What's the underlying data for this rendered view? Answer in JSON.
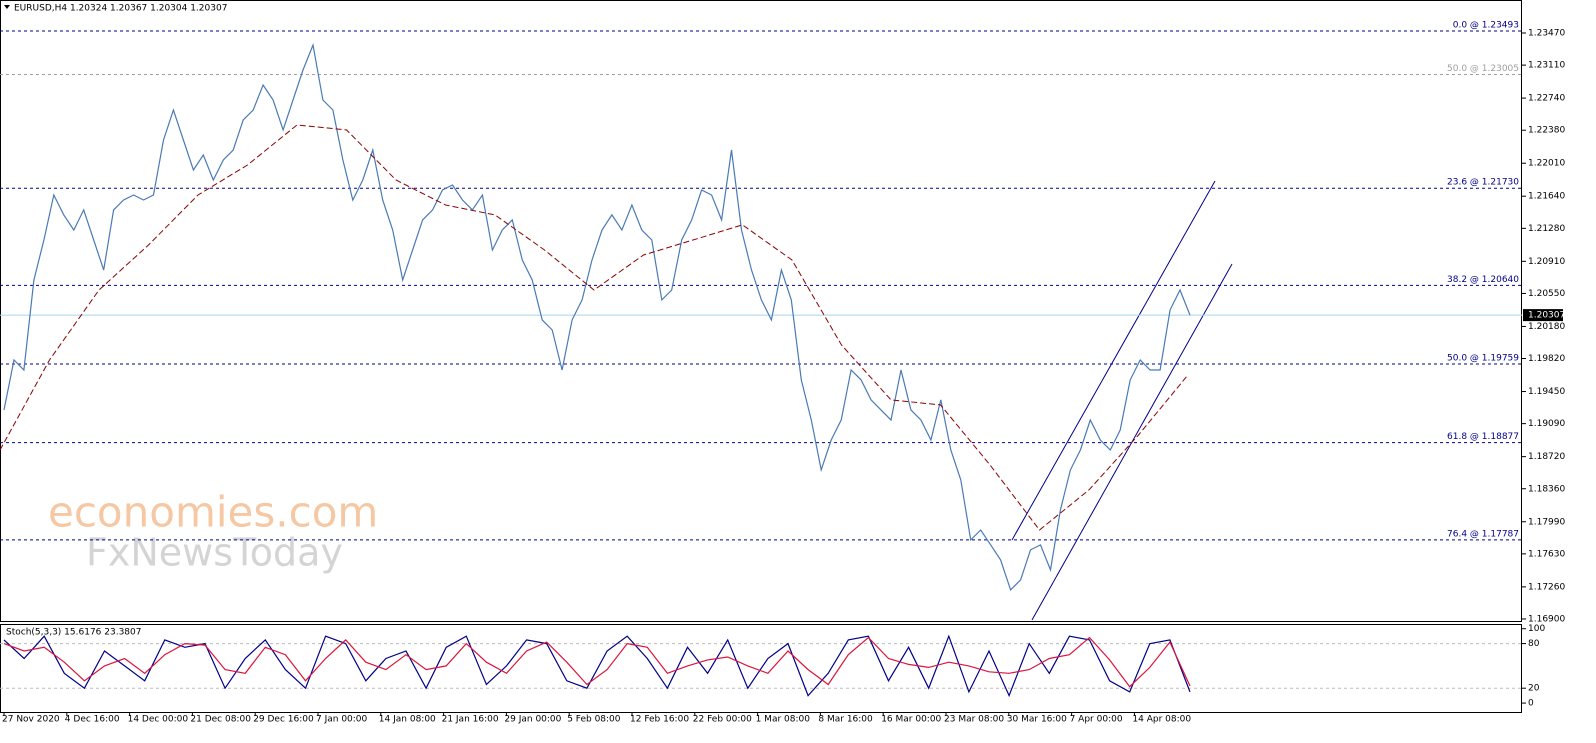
{
  "chart_data": [
    {
      "type": "line",
      "title": "EURUSD,H4  1.20324 1.20367 1.20304 1.20307",
      "watermark": [
        "economies.com",
        "FxNewsToday"
      ],
      "ylim": [
        1.16866,
        1.2384
      ],
      "yticks": [
        {
          "value": 1.2347,
          "label": "1.23470"
        },
        {
          "value": 1.2311,
          "label": "1.23110"
        },
        {
          "value": 1.2274,
          "label": "1.22740"
        },
        {
          "value": 1.2238,
          "label": "1.22380"
        },
        {
          "value": 1.2201,
          "label": "1.22010"
        },
        {
          "value": 1.2164,
          "label": "1.21640"
        },
        {
          "value": 1.2128,
          "label": "1.21280"
        },
        {
          "value": 1.2091,
          "label": "1.20910"
        },
        {
          "value": 1.2055,
          "label": "1.20550"
        },
        {
          "value": 1.2018,
          "label": "1.20180"
        },
        {
          "value": 1.1982,
          "label": "1.19820"
        },
        {
          "value": 1.1945,
          "label": "1.19450"
        },
        {
          "value": 1.1909,
          "label": "1.19090"
        },
        {
          "value": 1.1872,
          "label": "1.18720"
        },
        {
          "value": 1.1836,
          "label": "1.18360"
        },
        {
          "value": 1.1799,
          "label": "1.17990"
        },
        {
          "value": 1.1763,
          "label": "1.17630"
        },
        {
          "value": 1.1726,
          "label": "1.17260"
        },
        {
          "value": 1.169,
          "label": "1.16900"
        }
      ],
      "current_price": 1.20307,
      "fib_levels": [
        {
          "label": "0.0 @ 1.23493",
          "value": 1.23493,
          "color": "#00008b"
        },
        {
          "label": "50.0 @ 1.23005",
          "value": 1.23005,
          "color": "#a0a0a0"
        },
        {
          "label": "23.6 @ 1.21730",
          "value": 1.2173,
          "color": "#00008b"
        },
        {
          "label": "38.2 @ 1.20640",
          "value": 1.2064,
          "color": "#00008b"
        },
        {
          "label": "50.0 @ 1.19759",
          "value": 1.19759,
          "color": "#00008b"
        },
        {
          "label": "61.8 @ 1.18877",
          "value": 1.18877,
          "color": "#00008b"
        },
        {
          "label": "76.4 @ 1.17787",
          "value": 1.17787,
          "color": "#00008b"
        }
      ],
      "series": [
        {
          "color": "#4a7ab5",
          "values": [
            1.19244,
            1.19804,
            1.19692,
            1.20701,
            1.21149,
            1.21654,
            1.2143,
            1.21261,
            1.21486,
            1.21149,
            1.20813,
            1.21486,
            1.21598,
            1.21654,
            1.21598,
            1.21654,
            1.2227,
            1.22607,
            1.2227,
            1.21934,
            1.22102,
            1.21822,
            1.22046,
            1.22158,
            1.22495,
            1.22607,
            1.22887,
            1.22719,
            1.22383,
            1.22719,
            1.23055,
            1.23335,
            1.22719,
            1.22607,
            1.22046,
            1.21598,
            1.21822,
            1.22158,
            1.21598,
            1.21261,
            1.20701,
            1.21037,
            1.21374,
            1.21486,
            1.2171,
            1.21766,
            1.21598,
            1.21486,
            1.21654,
            1.21037,
            1.21261,
            1.21374,
            1.20925,
            1.20701,
            1.20253,
            1.2014,
            1.19692,
            1.20253,
            1.20477,
            1.20925,
            1.21261,
            1.2143,
            1.21261,
            1.21542,
            1.21261,
            1.21149,
            1.20477,
            1.20589,
            1.21149,
            1.21374,
            1.2171,
            1.21654,
            1.21374,
            1.22158,
            1.21261,
            1.20813,
            1.20477,
            1.20253,
            1.20813,
            1.20477,
            1.1958,
            1.19131,
            1.18571,
            1.18907,
            1.19131,
            1.19692,
            1.1958,
            1.19356,
            1.19244,
            1.19131,
            1.19692,
            1.19244,
            1.19131,
            1.18907,
            1.19356,
            1.18795,
            1.18459,
            1.17786,
            1.17898,
            1.1773,
            1.17562,
            1.17226,
            1.17338,
            1.17674,
            1.1773,
            1.1745,
            1.18122,
            1.18571,
            1.18795,
            1.19131,
            1.18907,
            1.18795,
            1.19019,
            1.1958,
            1.19804,
            1.19692,
            1.19692,
            1.20365,
            1.20589,
            1.20307
          ]
        },
        {
          "color": "#8b0000",
          "dashed": true,
          "values": [
            1.18795,
            1.19804,
            1.20589,
            1.21093,
            1.21654,
            1.2199,
            1.22439,
            1.22383,
            1.21822,
            1.21542,
            1.2143,
            1.21037,
            1.20589,
            1.20981,
            1.21149,
            1.21318,
            1.20925,
            1.19972,
            1.19356,
            1.193,
            1.18627,
            1.17898,
            1.18347,
            1.18963,
            1.19636
          ]
        }
      ]
    },
    {
      "type": "line",
      "title": "Stoch(5,3,3) 15.6176 23.3807",
      "ylim": [
        -12,
        105
      ],
      "yticks": [
        100,
        80,
        20,
        0
      ],
      "x_axis_labels": [
        "27 Nov 2020",
        "4 Dec 16:00",
        "14 Dec 00:00",
        "21 Dec 08:00",
        "29 Dec 16:00",
        "7 Jan 00:00",
        "14 Jan 08:00",
        "21 Jan 16:00",
        "29 Jan 00:00",
        "5 Feb 08:00",
        "12 Feb 16:00",
        "22 Feb 00:00",
        "1 Mar 08:00",
        "8 Mar 16:00",
        "16 Mar 00:00",
        "23 Mar 08:00",
        "30 Mar 16:00",
        "7 Apr 00:00",
        "14 Apr 08:00"
      ],
      "series": [
        {
          "color": "#00008b",
          "values": [
            85,
            60,
            90,
            40,
            20,
            70,
            50,
            30,
            85,
            75,
            80,
            20,
            60,
            85,
            45,
            20,
            90,
            80,
            30,
            60,
            70,
            20,
            75,
            90,
            25,
            50,
            85,
            80,
            30,
            20,
            70,
            90,
            60,
            20,
            75,
            40,
            85,
            20,
            60,
            80,
            10,
            40,
            85,
            90,
            30,
            75,
            20,
            90,
            15,
            70,
            10,
            80,
            40,
            90,
            85,
            30,
            15,
            80,
            85,
            15
          ]
        },
        {
          "color": "#dc143c",
          "values": [
            80,
            70,
            75,
            55,
            30,
            50,
            60,
            40,
            65,
            80,
            78,
            45,
            40,
            75,
            65,
            30,
            60,
            85,
            55,
            45,
            65,
            45,
            50,
            80,
            55,
            40,
            70,
            82,
            55,
            25,
            45,
            80,
            75,
            40,
            50,
            58,
            62,
            50,
            40,
            70,
            45,
            25,
            65,
            88,
            60,
            52,
            48,
            55,
            50,
            42,
            40,
            45,
            60,
            65,
            88,
            58,
            22,
            48,
            82,
            23
          ]
        }
      ]
    }
  ]
}
